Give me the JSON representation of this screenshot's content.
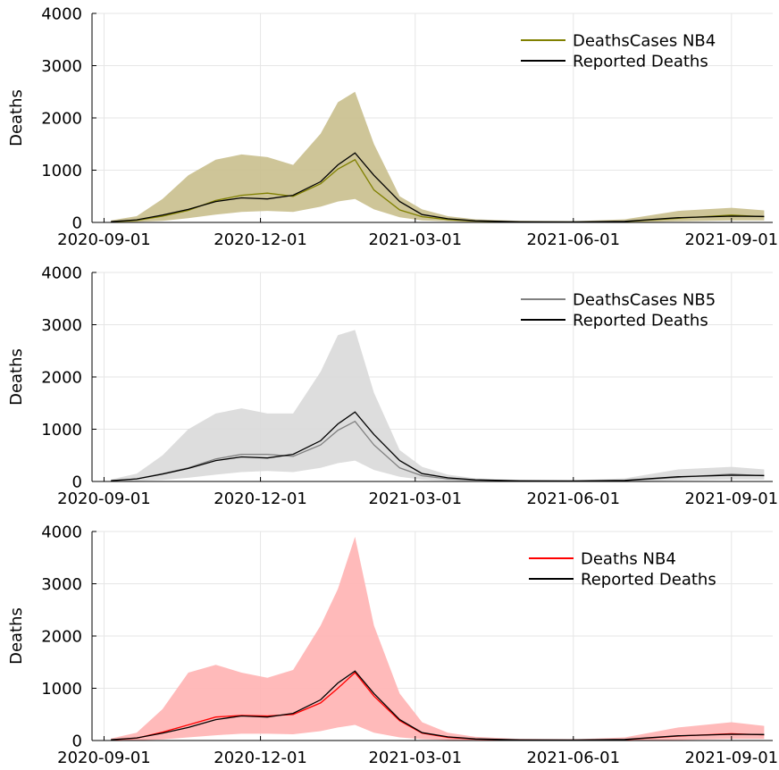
{
  "chart_data": [
    {
      "type": "line",
      "ylabel": "Deaths",
      "xlabel": "",
      "title": "",
      "ylim": [
        0,
        4000
      ],
      "xlim": [
        "2020-08-25",
        "2021-09-25"
      ],
      "yticks": [
        0,
        1000,
        2000,
        3000,
        4000
      ],
      "xticks": [
        "2020-09-01",
        "2020-12-01",
        "2021-03-01",
        "2021-06-01",
        "2021-09-01"
      ],
      "grid": true,
      "legend_position": "top-right",
      "series": [
        {
          "name": "DeathsCases NB4",
          "color": "#808000",
          "x": [
            "2020-09-05",
            "2020-09-20",
            "2020-10-05",
            "2020-10-20",
            "2020-11-05",
            "2020-11-20",
            "2020-12-05",
            "2020-12-20",
            "2021-01-05",
            "2021-01-15",
            "2021-01-25",
            "2021-02-05",
            "2021-02-20",
            "2021-03-05",
            "2021-03-20",
            "2021-04-05",
            "2021-05-01",
            "2021-06-01",
            "2021-07-01",
            "2021-08-01",
            "2021-09-01",
            "2021-09-20"
          ],
          "values": [
            10,
            40,
            120,
            230,
            420,
            520,
            560,
            500,
            740,
            1020,
            1200,
            620,
            240,
            110,
            55,
            25,
            10,
            8,
            15,
            80,
            140,
            110
          ]
        },
        {
          "name": "Reported Deaths",
          "color": "#000000",
          "x": [
            "2020-09-05",
            "2020-09-20",
            "2020-10-05",
            "2020-10-20",
            "2020-11-05",
            "2020-11-20",
            "2020-12-05",
            "2020-12-20",
            "2021-01-05",
            "2021-01-15",
            "2021-01-25",
            "2021-02-05",
            "2021-02-20",
            "2021-03-05",
            "2021-03-20",
            "2021-04-05",
            "2021-05-01",
            "2021-06-01",
            "2021-07-01",
            "2021-08-01",
            "2021-09-01",
            "2021-09-20"
          ],
          "values": [
            15,
            50,
            140,
            250,
            400,
            470,
            450,
            520,
            780,
            1100,
            1330,
            900,
            400,
            150,
            70,
            30,
            12,
            10,
            20,
            90,
            120,
            115
          ]
        }
      ],
      "band": {
        "color": "#c9bf8d",
        "x": [
          "2020-09-05",
          "2020-09-20",
          "2020-10-05",
          "2020-10-20",
          "2020-11-05",
          "2020-11-20",
          "2020-12-05",
          "2020-12-20",
          "2021-01-05",
          "2021-01-15",
          "2021-01-25",
          "2021-02-05",
          "2021-02-20",
          "2021-03-05",
          "2021-03-20",
          "2021-04-05",
          "2021-05-01",
          "2021-06-01",
          "2021-07-01",
          "2021-08-01",
          "2021-09-01",
          "2021-09-20"
        ],
        "lower": [
          0,
          10,
          30,
          80,
          150,
          200,
          220,
          200,
          300,
          400,
          450,
          250,
          100,
          40,
          20,
          5,
          0,
          0,
          0,
          20,
          40,
          40
        ],
        "upper": [
          40,
          120,
          450,
          900,
          1200,
          1300,
          1250,
          1100,
          1700,
          2300,
          2500,
          1500,
          500,
          250,
          120,
          60,
          30,
          20,
          60,
          220,
          280,
          230
        ]
      }
    },
    {
      "type": "line",
      "ylabel": "Deaths",
      "xlabel": "",
      "title": "",
      "ylim": [
        0,
        4000
      ],
      "xlim": [
        "2020-08-25",
        "2021-09-25"
      ],
      "yticks": [
        0,
        1000,
        2000,
        3000,
        4000
      ],
      "xticks": [
        "2020-09-01",
        "2020-12-01",
        "2021-03-01",
        "2021-06-01",
        "2021-09-01"
      ],
      "grid": true,
      "legend_position": "top-right",
      "series": [
        {
          "name": "DeathsCases NB5",
          "color": "#808080",
          "x": [
            "2020-09-05",
            "2020-09-20",
            "2020-10-05",
            "2020-10-20",
            "2020-11-05",
            "2020-11-20",
            "2020-12-05",
            "2020-12-20",
            "2021-01-05",
            "2021-01-15",
            "2021-01-25",
            "2021-02-05",
            "2021-02-20",
            "2021-03-05",
            "2021-03-20",
            "2021-04-05",
            "2021-05-01",
            "2021-06-01",
            "2021-07-01",
            "2021-08-01",
            "2021-09-01",
            "2021-09-20"
          ],
          "values": [
            10,
            50,
            150,
            260,
            430,
            520,
            520,
            480,
            700,
            980,
            1150,
            700,
            260,
            110,
            50,
            25,
            10,
            8,
            15,
            80,
            140,
            110
          ]
        },
        {
          "name": "Reported Deaths",
          "color": "#000000",
          "x": [
            "2020-09-05",
            "2020-09-20",
            "2020-10-05",
            "2020-10-20",
            "2020-11-05",
            "2020-11-20",
            "2020-12-05",
            "2020-12-20",
            "2021-01-05",
            "2021-01-15",
            "2021-01-25",
            "2021-02-05",
            "2021-02-20",
            "2021-03-05",
            "2021-03-20",
            "2021-04-05",
            "2021-05-01",
            "2021-06-01",
            "2021-07-01",
            "2021-08-01",
            "2021-09-01",
            "2021-09-20"
          ],
          "values": [
            15,
            50,
            140,
            250,
            400,
            470,
            450,
            520,
            780,
            1100,
            1330,
            900,
            400,
            150,
            70,
            30,
            12,
            10,
            20,
            90,
            120,
            115
          ]
        }
      ],
      "band": {
        "color": "#d9d9d9",
        "x": [
          "2020-09-05",
          "2020-09-20",
          "2020-10-05",
          "2020-10-20",
          "2020-11-05",
          "2020-11-20",
          "2020-12-05",
          "2020-12-20",
          "2021-01-05",
          "2021-01-15",
          "2021-01-25",
          "2021-02-05",
          "2021-02-20",
          "2021-03-05",
          "2021-03-20",
          "2021-04-05",
          "2021-05-01",
          "2021-06-01",
          "2021-07-01",
          "2021-08-01",
          "2021-09-01",
          "2021-09-20"
        ],
        "lower": [
          0,
          10,
          30,
          70,
          130,
          180,
          200,
          180,
          260,
          350,
          400,
          220,
          90,
          35,
          15,
          5,
          0,
          0,
          0,
          20,
          40,
          40
        ],
        "upper": [
          40,
          150,
          500,
          1000,
          1300,
          1400,
          1300,
          1300,
          2100,
          2800,
          2900,
          1700,
          600,
          280,
          130,
          60,
          30,
          20,
          60,
          230,
          280,
          230
        ]
      }
    },
    {
      "type": "line",
      "ylabel": "Deaths",
      "xlabel": "",
      "title": "",
      "ylim": [
        0,
        4000
      ],
      "xlim": [
        "2020-08-25",
        "2021-09-25"
      ],
      "yticks": [
        0,
        1000,
        2000,
        3000,
        4000
      ],
      "xticks": [
        "2020-09-01",
        "2020-12-01",
        "2021-03-01",
        "2021-06-01",
        "2021-09-01"
      ],
      "grid": true,
      "legend_position": "top-right",
      "series": [
        {
          "name": "Deaths NB4",
          "color": "#ff0000",
          "x": [
            "2020-09-05",
            "2020-09-20",
            "2020-10-05",
            "2020-10-20",
            "2020-11-05",
            "2020-11-20",
            "2020-12-05",
            "2020-12-20",
            "2021-01-05",
            "2021-01-15",
            "2021-01-25",
            "2021-02-05",
            "2021-02-20",
            "2021-03-05",
            "2021-03-20",
            "2021-04-05",
            "2021-05-01",
            "2021-06-01",
            "2021-07-01",
            "2021-08-01",
            "2021-09-01",
            "2021-09-20"
          ],
          "values": [
            12,
            45,
            160,
            300,
            450,
            480,
            470,
            500,
            720,
            1000,
            1300,
            850,
            380,
            140,
            60,
            25,
            10,
            8,
            15,
            85,
            130,
            110
          ]
        },
        {
          "name": "Reported Deaths",
          "color": "#000000",
          "x": [
            "2020-09-05",
            "2020-09-20",
            "2020-10-05",
            "2020-10-20",
            "2020-11-05",
            "2020-11-20",
            "2020-12-05",
            "2020-12-20",
            "2021-01-05",
            "2021-01-15",
            "2021-01-25",
            "2021-02-05",
            "2021-02-20",
            "2021-03-05",
            "2021-03-20",
            "2021-04-05",
            "2021-05-01",
            "2021-06-01",
            "2021-07-01",
            "2021-08-01",
            "2021-09-01",
            "2021-09-20"
          ],
          "values": [
            15,
            50,
            140,
            250,
            400,
            470,
            450,
            520,
            780,
            1100,
            1330,
            900,
            400,
            150,
            70,
            30,
            12,
            10,
            20,
            90,
            120,
            115
          ]
        }
      ],
      "band": {
        "color": "#ffb3b3",
        "x": [
          "2020-09-05",
          "2020-09-20",
          "2020-10-05",
          "2020-10-20",
          "2020-11-05",
          "2020-11-20",
          "2020-12-05",
          "2020-12-20",
          "2021-01-05",
          "2021-01-15",
          "2021-01-25",
          "2021-02-05",
          "2021-02-20",
          "2021-03-05",
          "2021-03-20",
          "2021-04-05",
          "2021-05-01",
          "2021-06-01",
          "2021-07-01",
          "2021-08-01",
          "2021-09-01",
          "2021-09-20"
        ],
        "lower": [
          0,
          5,
          20,
          60,
          100,
          130,
          130,
          120,
          180,
          250,
          300,
          150,
          60,
          25,
          10,
          0,
          0,
          0,
          0,
          10,
          30,
          30
        ],
        "upper": [
          40,
          150,
          600,
          1300,
          1450,
          1300,
          1200,
          1350,
          2200,
          2900,
          3900,
          2200,
          900,
          350,
          150,
          70,
          30,
          20,
          60,
          250,
          350,
          280
        ]
      }
    }
  ]
}
